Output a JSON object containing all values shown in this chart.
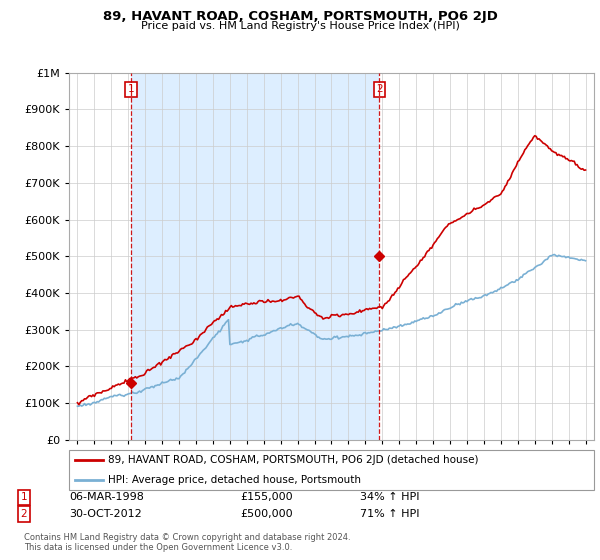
{
  "title": "89, HAVANT ROAD, COSHAM, PORTSMOUTH, PO6 2JD",
  "subtitle": "Price paid vs. HM Land Registry's House Price Index (HPI)",
  "property_label": "89, HAVANT ROAD, COSHAM, PORTSMOUTH, PO6 2JD (detached house)",
  "hpi_label": "HPI: Average price, detached house, Portsmouth",
  "transaction1_date": "06-MAR-1998",
  "transaction1_price": "£155,000",
  "transaction1_hpi": "34% ↑ HPI",
  "transaction2_date": "30-OCT-2012",
  "transaction2_price": "£500,000",
  "transaction2_hpi": "71% ↑ HPI",
  "footer": "Contains HM Land Registry data © Crown copyright and database right 2024.\nThis data is licensed under the Open Government Licence v3.0.",
  "property_color": "#cc0000",
  "hpi_color": "#7ab0d4",
  "shade_color": "#ddeeff",
  "dashed_line_color": "#cc0000",
  "transaction1_year": 1998.17,
  "transaction1_value": 155000,
  "transaction2_year": 2012.83,
  "transaction2_value": 500000,
  "ylim_min": 0,
  "ylim_max": 1000000,
  "xlim_min": 1994.5,
  "xlim_max": 2025.5
}
